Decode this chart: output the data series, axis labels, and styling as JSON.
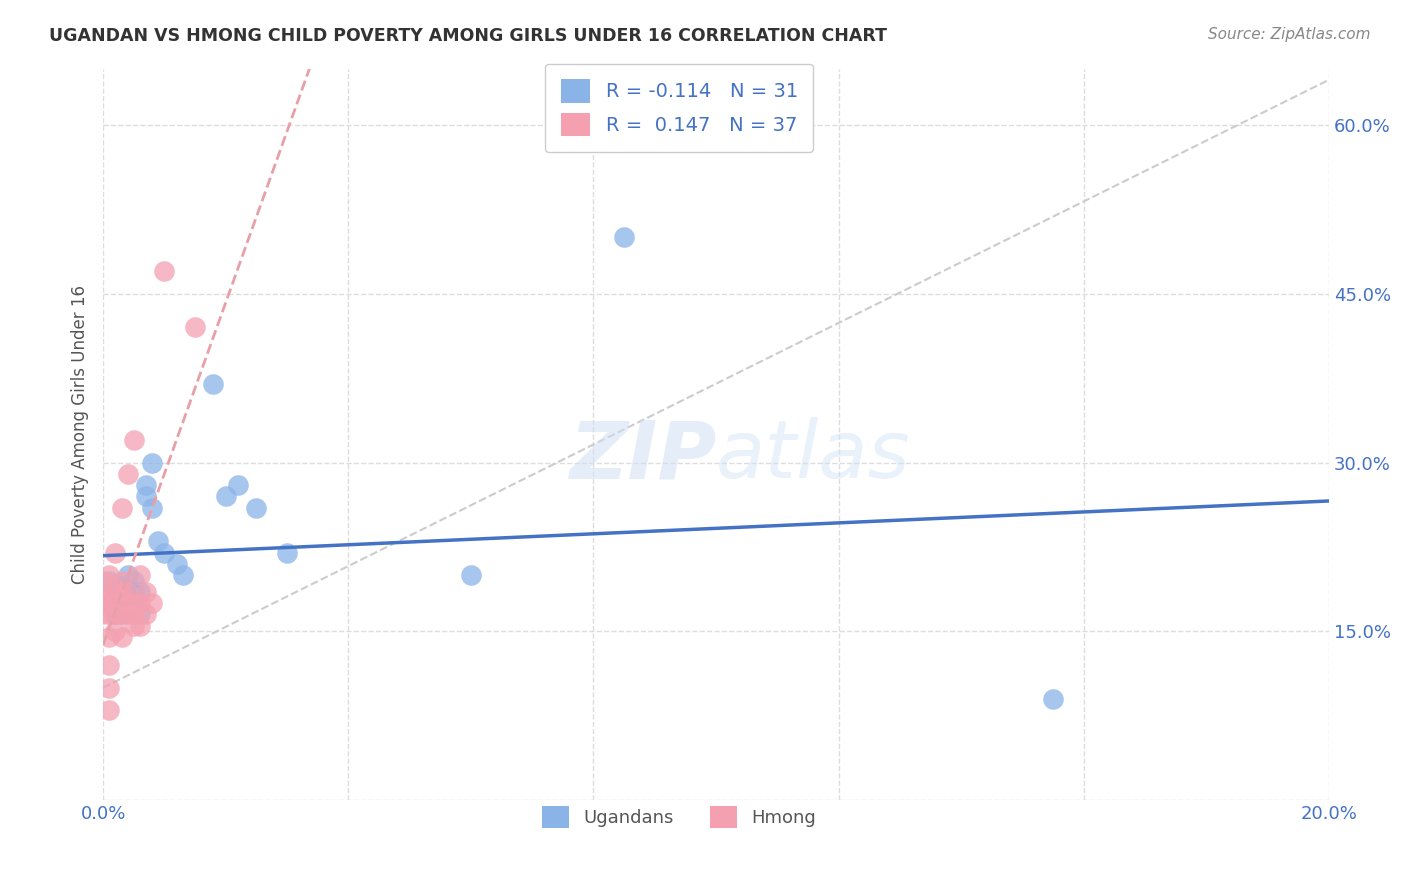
{
  "title": "UGANDAN VS HMONG CHILD POVERTY AMONG GIRLS UNDER 16 CORRELATION CHART",
  "source": "Source: ZipAtlas.com",
  "ylabel": "Child Poverty Among Girls Under 16",
  "xlim": [
    0.0,
    0.2
  ],
  "ylim": [
    0.0,
    0.65
  ],
  "x_ticks": [
    0.0,
    0.04,
    0.08,
    0.12,
    0.16,
    0.2
  ],
  "x_tick_labels": [
    "0.0%",
    "",
    "",
    "",
    "",
    "20.0%"
  ],
  "y_ticks_right": [
    0.0,
    0.15,
    0.3,
    0.45,
    0.6
  ],
  "y_tick_labels_right": [
    "",
    "15.0%",
    "30.0%",
    "45.0%",
    "60.0%"
  ],
  "r_ugandan": -0.114,
  "n_ugandan": 31,
  "r_hmong": 0.147,
  "n_hmong": 37,
  "color_ugandan": "#8ab4e8",
  "color_hmong": "#f4a0b0",
  "trendline_ugandan_color": "#4472c4",
  "trendline_hmong_color": "#e8a0a8",
  "diagonal_color": "#cccccc",
  "background_color": "#ffffff",
  "grid_color": "#dddddd",
  "watermark": "ZIPatlas",
  "ugandan_x": [
    0.001,
    0.001,
    0.002,
    0.002,
    0.002,
    0.003,
    0.003,
    0.003,
    0.004,
    0.004,
    0.005,
    0.005,
    0.005,
    0.006,
    0.006,
    0.007,
    0.007,
    0.008,
    0.008,
    0.009,
    0.01,
    0.012,
    0.013,
    0.018,
    0.02,
    0.022,
    0.025,
    0.03,
    0.06,
    0.085,
    0.155
  ],
  "ugandan_y": [
    0.195,
    0.175,
    0.165,
    0.185,
    0.175,
    0.165,
    0.175,
    0.19,
    0.175,
    0.2,
    0.185,
    0.195,
    0.175,
    0.165,
    0.185,
    0.28,
    0.27,
    0.3,
    0.26,
    0.23,
    0.22,
    0.21,
    0.2,
    0.37,
    0.27,
    0.28,
    0.26,
    0.22,
    0.2,
    0.5,
    0.09
  ],
  "hmong_x": [
    0.0,
    0.0,
    0.0,
    0.0,
    0.001,
    0.001,
    0.001,
    0.001,
    0.001,
    0.001,
    0.001,
    0.002,
    0.002,
    0.002,
    0.002,
    0.002,
    0.003,
    0.003,
    0.003,
    0.003,
    0.003,
    0.004,
    0.004,
    0.004,
    0.004,
    0.005,
    0.005,
    0.005,
    0.005,
    0.006,
    0.006,
    0.006,
    0.007,
    0.007,
    0.008,
    0.01,
    0.015
  ],
  "hmong_y": [
    0.165,
    0.175,
    0.185,
    0.195,
    0.08,
    0.1,
    0.12,
    0.145,
    0.165,
    0.18,
    0.2,
    0.15,
    0.165,
    0.175,
    0.185,
    0.22,
    0.145,
    0.165,
    0.185,
    0.195,
    0.26,
    0.165,
    0.175,
    0.185,
    0.29,
    0.155,
    0.165,
    0.175,
    0.32,
    0.155,
    0.175,
    0.2,
    0.165,
    0.185,
    0.175,
    0.47,
    0.42
  ]
}
